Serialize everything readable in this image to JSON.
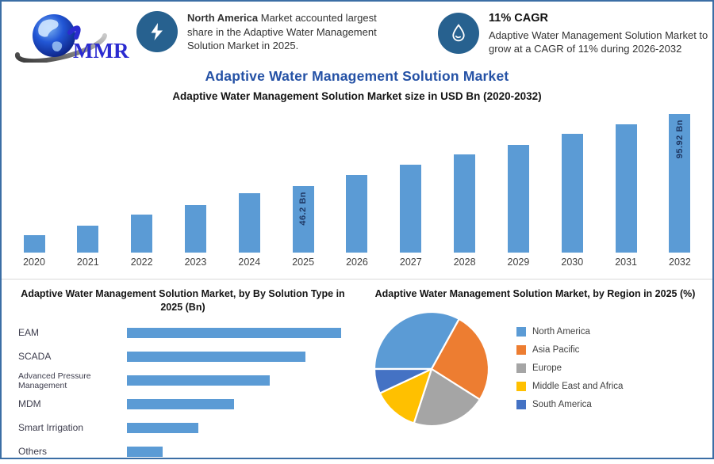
{
  "page": {
    "border_color": "#3B6EA5",
    "background": "#FFFFFF"
  },
  "header": {
    "logo_text": "MMR",
    "callouts": [
      {
        "icon": "lightning-bolt-icon",
        "highlight": "North America",
        "text": "Market accounted largest share in the Adaptive Water Management Solution Market in 2025."
      },
      {
        "icon": "water-drop-icon",
        "title": "11% CAGR",
        "text": "Adaptive Water Management Solution Market to grow at a CAGR of 11% during 2026-2032"
      }
    ]
  },
  "titles": {
    "main": "Adaptive Water Management Solution Market"
  },
  "chart_data": [
    {
      "type": "bar",
      "title": "Adaptive Water Management Solution Market size in USD Bn (2020-2032)",
      "categories": [
        "2020",
        "2021",
        "2022",
        "2023",
        "2024",
        "2025",
        "2026",
        "2027",
        "2028",
        "2029",
        "2030",
        "2031",
        "2032"
      ],
      "values": [
        12,
        18.7,
        26.5,
        33.1,
        41.4,
        46.2,
        54,
        61.2,
        68.4,
        75,
        82.7,
        89.3,
        95.92
      ],
      "value_labels": [
        "",
        "",
        "",
        "",
        "",
        "46.2 Bn",
        "",
        "",
        "",
        "",
        "",
        "",
        "95.92 Bn"
      ],
      "unit": "USD Bn",
      "ylim": [
        0,
        100
      ],
      "grid": false,
      "bar_color": "#5B9BD5",
      "label_color": "#1F3864"
    },
    {
      "type": "bar",
      "orientation": "horizontal",
      "title": "Adaptive Water Management Solution Market, by By Solution Type in 2025 (Bn)",
      "categories": [
        "EAM",
        "SCADA",
        "Advanced Pressure Management",
        "MDM",
        "Smart Irrigation",
        "Others"
      ],
      "values": [
        13.2,
        11.0,
        8.8,
        6.6,
        4.4,
        2.2
      ],
      "unit": "USD Bn (estimated, bars unlabeled)",
      "grid": false,
      "bar_color": "#5B9BD5"
    },
    {
      "type": "pie",
      "title": "Adaptive Water Management Solution Market, by Region in 2025 (%)",
      "labels": [
        "North America",
        "Asia Pacific",
        "Europe",
        "Middle East and Africa",
        "South America"
      ],
      "values": [
        33,
        26,
        21,
        13,
        7
      ],
      "unit": "% (estimated from slice angles, slices unlabeled)",
      "colors": [
        "#5B9BD5",
        "#ED7D31",
        "#A5A5A5",
        "#FFC000",
        "#4472C4"
      ],
      "start_angle_deg": 270,
      "legend_position": "right"
    }
  ],
  "colors": {
    "accent_bar": "#5B9BD5",
    "icon_circle": "#27618F",
    "title_blue": "#2451A5",
    "value_label_navy": "#1F3864",
    "border_blue": "#3B6EA5",
    "logo_blue": "#2B2BD0",
    "text_dark": "#333333"
  }
}
